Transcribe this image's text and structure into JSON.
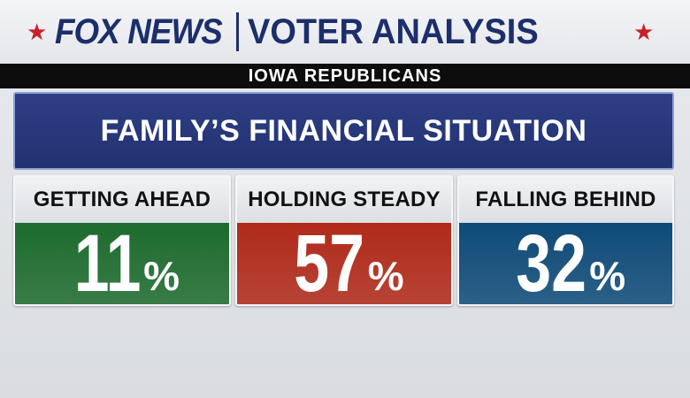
{
  "header": {
    "logo_text": "FOX NEWS",
    "section_title": "VOTER ANALYSIS",
    "star_color": "#c8202a",
    "brand_color": "#1c2f6b"
  },
  "subheader": "IOWA REPUBLICANS",
  "question": "FAMILY’S FINANCIAL SITUATION",
  "results": [
    {
      "label": "GETTING AHEAD",
      "value": "11",
      "unit": "%",
      "color": "#1e6b2e"
    },
    {
      "label": "HOLDING STEADY",
      "value": "57",
      "unit": "%",
      "color": "#b02a1a"
    },
    {
      "label": "FALLING BEHIND",
      "value": "32",
      "unit": "%",
      "color": "#0f4b78"
    }
  ]
}
